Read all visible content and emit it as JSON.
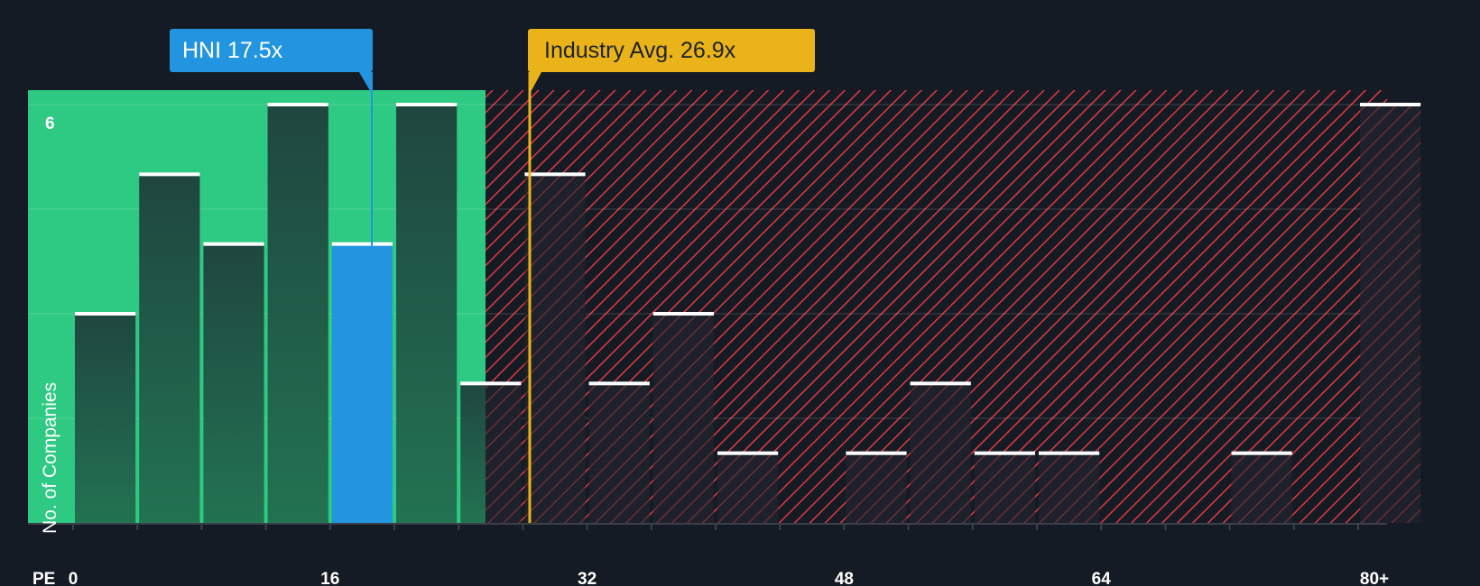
{
  "chart_data": {
    "type": "bar",
    "title": "",
    "xlabel": "PE",
    "ylabel": "No. of Companies",
    "x_ticks": [
      "0",
      "16",
      "32",
      "48",
      "64",
      "80+"
    ],
    "y_ticks": [
      "6"
    ],
    "ylim": [
      0,
      6
    ],
    "bin_width": 4,
    "categories": [
      "0-4",
      "4-8",
      "8-12",
      "12-16",
      "16-20",
      "20-24",
      "24-28",
      "28-32",
      "32-36",
      "36-40",
      "40-44",
      "44-48",
      "48-52",
      "52-56",
      "56-60",
      "60-64",
      "64-68",
      "68-72",
      "72-76",
      "76-80",
      "80+"
    ],
    "values": [
      3,
      5,
      4,
      6,
      4,
      6,
      2,
      5,
      2,
      3,
      1,
      0,
      1,
      2,
      1,
      1,
      0,
      0,
      1,
      0,
      6
    ],
    "highlight_bin": "16-20",
    "annotations": [
      {
        "label": "HNI 17.5x",
        "value": 17.5,
        "color": "#2394df"
      },
      {
        "label": "Industry Avg. 26.9x",
        "value": 26.9,
        "color": "#eab31a"
      }
    ],
    "regions": [
      {
        "name": "below-average",
        "from": 0,
        "to": 25.5,
        "color": "#2ec982"
      },
      {
        "name": "above-average",
        "from": 25.5,
        "to": 81,
        "color": "#e0393e",
        "pattern": "hatched"
      }
    ],
    "grid": true
  },
  "callouts": {
    "company": "HNI 17.5x",
    "industry": "Industry Avg. 26.9x"
  },
  "axis": {
    "x_label": "PE",
    "y_label": "No. of Companies",
    "y_top_tick": "6"
  },
  "colors": {
    "background": "#151b24",
    "good_zone": "#2ec982",
    "bad_zone_stripe": "#e0393e",
    "company": "#2394df",
    "industry": "#eab31a",
    "bar_green": "#1f4a3e",
    "bar_dark": "#1c212b"
  }
}
